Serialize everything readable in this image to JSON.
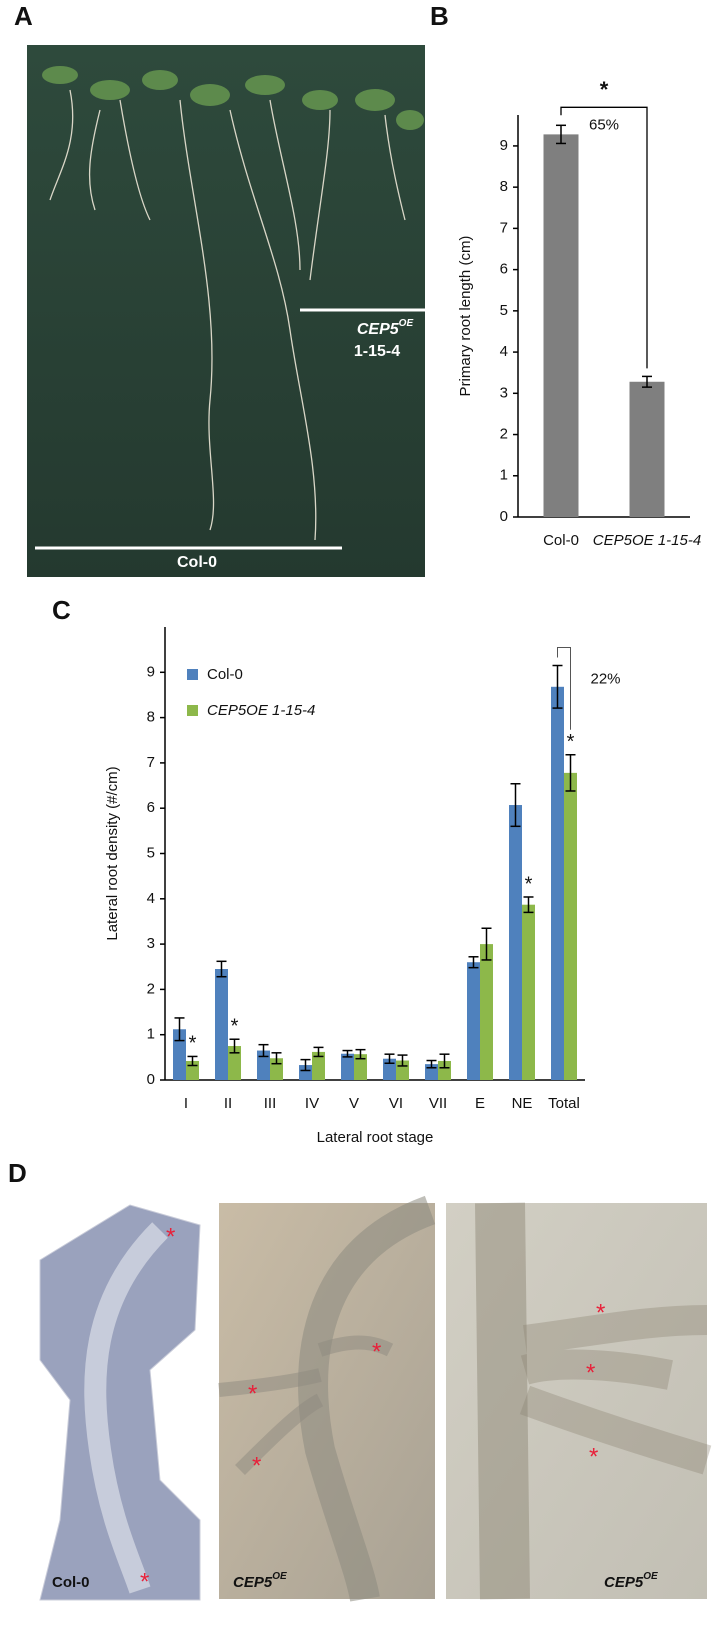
{
  "panels": {
    "a": {
      "letter": "A",
      "line_label": "CEP5",
      "line_superscript": "OE",
      "line_allele": "1-15-4",
      "control_label": "Col-0"
    },
    "b": {
      "letter": "B"
    },
    "c": {
      "letter": "C"
    },
    "d": {
      "letter": "D",
      "images": [
        {
          "label": "Col-0",
          "superscript": null
        },
        {
          "label": "CEP5",
          "superscript": "OE"
        },
        {
          "label": "CEP5",
          "superscript": "OE"
        }
      ]
    }
  },
  "chart_data": [
    {
      "type": "bar",
      "y_label": "Primary root length (cm)",
      "categories": [
        "Col-0",
        "CEP5OE 1-15-4"
      ],
      "values": [
        9.28,
        3.28
      ],
      "errors": [
        0.22,
        0.13
      ],
      "color": "#7f7f7f",
      "ylim": [
        0,
        9.75
      ],
      "yticks": [
        0,
        1,
        2,
        3,
        4,
        5,
        6,
        7,
        8,
        9
      ],
      "significance_label": "*",
      "difference_label": "65%"
    },
    {
      "type": "grouped_bar",
      "x_label": "Lateral root stage",
      "y_label": "Lateral root density (#/cm)",
      "categories": [
        "I",
        "II",
        "III",
        "IV",
        "V",
        "VI",
        "VII",
        "E",
        "NE",
        "Total"
      ],
      "series": [
        {
          "name": "Col-0",
          "color": "#4f81bd",
          "values": [
            1.12,
            2.45,
            0.65,
            0.33,
            0.58,
            0.47,
            0.35,
            2.6,
            6.07,
            8.68
          ],
          "errors": [
            0.25,
            0.17,
            0.13,
            0.12,
            0.07,
            0.1,
            0.08,
            0.12,
            0.47,
            0.47
          ]
        },
        {
          "name": "CEP5OE 1-15-4",
          "color": "#8db84a",
          "values": [
            0.42,
            0.75,
            0.48,
            0.62,
            0.57,
            0.43,
            0.42,
            3.0,
            3.87,
            6.78
          ],
          "errors": [
            0.1,
            0.15,
            0.12,
            0.1,
            0.1,
            0.12,
            0.15,
            0.35,
            0.17,
            0.4
          ],
          "significant": [
            true,
            true,
            false,
            false,
            false,
            false,
            false,
            false,
            true,
            true
          ]
        }
      ],
      "ylim": [
        0,
        10
      ],
      "yticks": [
        0,
        1,
        2,
        3,
        4,
        5,
        6,
        7,
        8,
        9
      ],
      "legend": "top-left",
      "significance_label": "*",
      "difference_label": "22%"
    }
  ]
}
